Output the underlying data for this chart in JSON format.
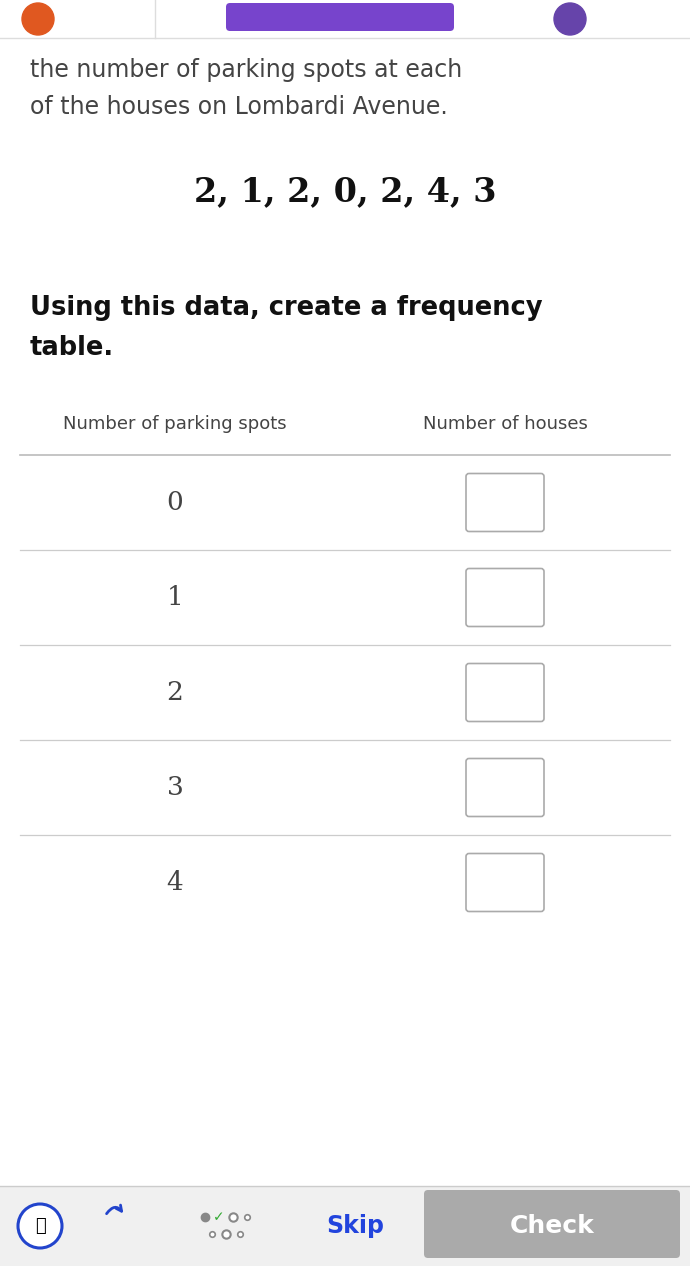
{
  "bg_color": "#ffffff",
  "top_text_line1": "the number of parking spots at each",
  "top_text_line2": "of the houses on Lombardi Avenue.",
  "data_line": "2, 1, 2, 0, 2, 4, 3",
  "instruction_line1": "Using this data, create a frequency",
  "instruction_line2": "table.",
  "col1_header": "Number of parking spots",
  "col2_header": "Number of houses",
  "rows": [
    "0",
    "1",
    "2",
    "3",
    "4"
  ],
  "text_color": "#444444",
  "data_text_color": "#111111",
  "instruction_color": "#111111",
  "header_line_color": "#bbbbbb",
  "row_line_color": "#cccccc",
  "box_color": "#ffffff",
  "box_border_color": "#aaaaaa",
  "skip_color": "#2244dd",
  "check_bg": "#aaaaaa",
  "check_color": "#ffffff",
  "bottom_bar_color": "#f0f0f0",
  "toolbar_separator_color": "#cccccc",
  "orange_color": "#e05820",
  "purple_bar_color": "#7744cc",
  "purple_circle_color": "#6644aa",
  "blue_icon_color": "#2244cc"
}
